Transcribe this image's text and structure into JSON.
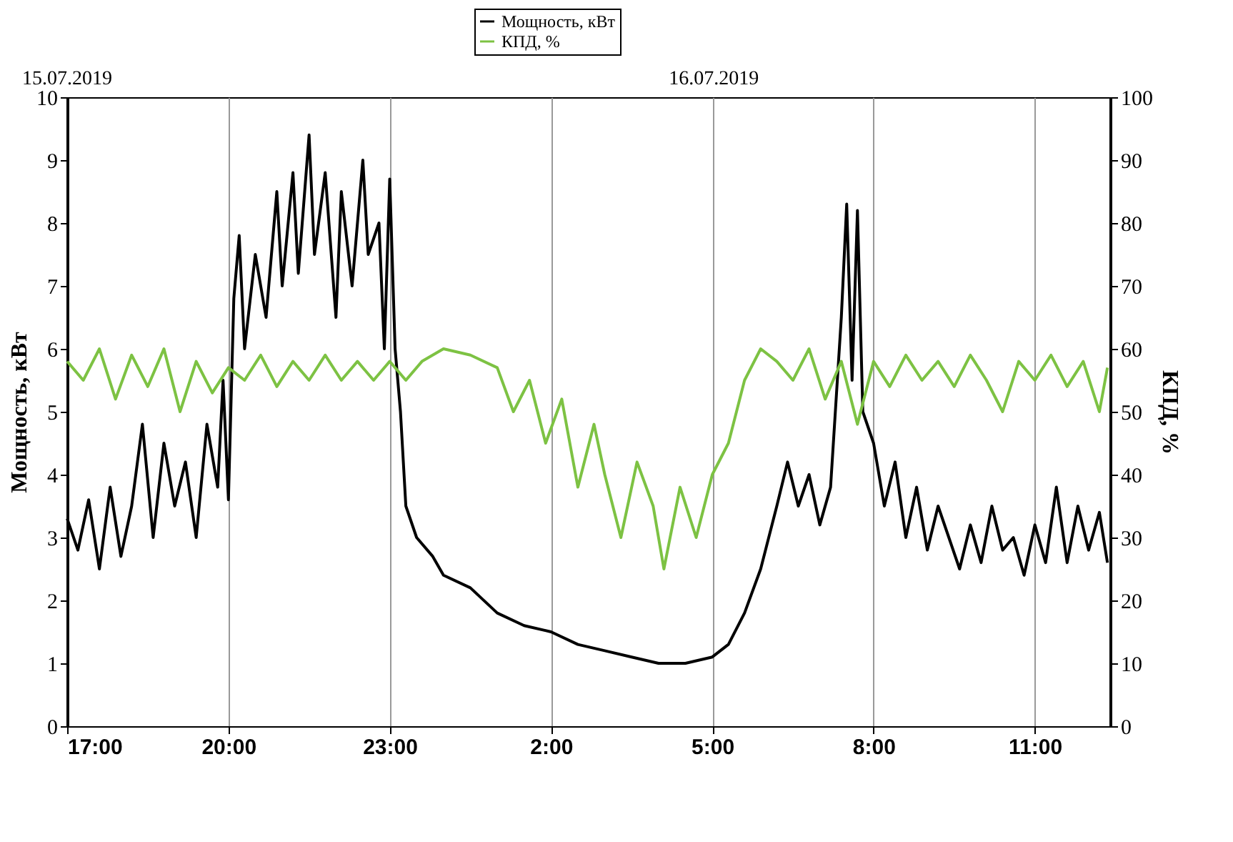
{
  "chart_data": {
    "type": "line",
    "ylabel": "Мощность, кВт",
    "y2label": "КПД, %",
    "xlim": [
      "2019-07-15T17:00",
      "2019-07-16T12:24"
    ],
    "xticks": [
      {
        "value": "2019-07-15T17:00",
        "label": "17:00"
      },
      {
        "value": "2019-07-15T20:00",
        "label": "20:00"
      },
      {
        "value": "2019-07-15T23:00",
        "label": "23:00"
      },
      {
        "value": "2019-07-16T02:00",
        "label": "2:00"
      },
      {
        "value": "2019-07-16T05:00",
        "label": "5:00"
      },
      {
        "value": "2019-07-16T08:00",
        "label": "8:00"
      },
      {
        "value": "2019-07-16T11:00",
        "label": "11:00"
      }
    ],
    "annotations": [
      "15.07.2019",
      "16.07.2019"
    ],
    "ylim": [
      0,
      10
    ],
    "yticks": [
      0,
      1,
      2,
      3,
      4,
      5,
      6,
      7,
      8,
      9,
      10
    ],
    "y2lim": [
      0,
      100
    ],
    "y2ticks": [
      0,
      10,
      20,
      30,
      40,
      50,
      60,
      70,
      80,
      90,
      100
    ],
    "grid": "x",
    "legend": "top",
    "marker": "none",
    "line_style": "solid",
    "series": [
      {
        "name": "Мощность, кВт",
        "color": "#000000",
        "x": [
          "2019-07-15T17:00",
          "2019-07-15T17:12",
          "2019-07-15T17:24",
          "2019-07-15T17:36",
          "2019-07-15T17:48",
          "2019-07-15T18:00",
          "2019-07-15T18:12",
          "2019-07-15T18:24",
          "2019-07-15T18:36",
          "2019-07-15T18:48",
          "2019-07-15T19:00",
          "2019-07-15T19:12",
          "2019-07-15T19:24",
          "2019-07-15T19:36",
          "2019-07-15T19:48",
          "2019-07-15T19:54",
          "2019-07-15T20:00",
          "2019-07-15T20:06",
          "2019-07-15T20:12",
          "2019-07-15T20:18",
          "2019-07-15T20:30",
          "2019-07-15T20:42",
          "2019-07-15T20:54",
          "2019-07-15T21:00",
          "2019-07-15T21:12",
          "2019-07-15T21:18",
          "2019-07-15T21:30",
          "2019-07-15T21:36",
          "2019-07-15T21:48",
          "2019-07-15T22:00",
          "2019-07-15T22:06",
          "2019-07-15T22:18",
          "2019-07-15T22:30",
          "2019-07-15T22:36",
          "2019-07-15T22:48",
          "2019-07-15T22:54",
          "2019-07-15T23:00",
          "2019-07-15T23:06",
          "2019-07-15T23:12",
          "2019-07-15T23:18",
          "2019-07-15T23:30",
          "2019-07-15T23:48",
          "2019-07-16T00:00",
          "2019-07-16T00:30",
          "2019-07-16T01:00",
          "2019-07-16T01:30",
          "2019-07-16T02:00",
          "2019-07-16T02:30",
          "2019-07-16T03:00",
          "2019-07-16T03:30",
          "2019-07-16T04:00",
          "2019-07-16T04:30",
          "2019-07-16T05:00",
          "2019-07-16T05:18",
          "2019-07-16T05:36",
          "2019-07-16T05:54",
          "2019-07-16T06:12",
          "2019-07-16T06:24",
          "2019-07-16T06:36",
          "2019-07-16T06:48",
          "2019-07-16T07:00",
          "2019-07-16T07:12",
          "2019-07-16T07:24",
          "2019-07-16T07:30",
          "2019-07-16T07:36",
          "2019-07-16T07:42",
          "2019-07-16T07:48",
          "2019-07-16T08:00",
          "2019-07-16T08:12",
          "2019-07-16T08:24",
          "2019-07-16T08:36",
          "2019-07-16T08:48",
          "2019-07-16T09:00",
          "2019-07-16T09:12",
          "2019-07-16T09:24",
          "2019-07-16T09:36",
          "2019-07-16T09:48",
          "2019-07-16T10:00",
          "2019-07-16T10:12",
          "2019-07-16T10:24",
          "2019-07-16T10:36",
          "2019-07-16T10:48",
          "2019-07-16T11:00",
          "2019-07-16T11:12",
          "2019-07-16T11:24",
          "2019-07-16T11:36",
          "2019-07-16T11:48",
          "2019-07-16T12:00",
          "2019-07-16T12:12",
          "2019-07-16T12:21"
        ],
        "values": [
          3.3,
          2.8,
          3.6,
          2.5,
          3.8,
          2.7,
          3.5,
          4.8,
          3.0,
          4.5,
          3.5,
          4.2,
          3.0,
          4.8,
          3.8,
          5.5,
          3.6,
          6.8,
          7.8,
          6.0,
          7.5,
          6.5,
          8.5,
          7.0,
          8.8,
          7.2,
          9.4,
          7.5,
          8.8,
          6.5,
          8.5,
          7.0,
          9.0,
          7.5,
          8.0,
          6.0,
          8.7,
          6.0,
          5.0,
          3.5,
          3.0,
          2.7,
          2.4,
          2.2,
          1.8,
          1.6,
          1.5,
          1.3,
          1.2,
          1.1,
          1.0,
          1.0,
          1.1,
          1.3,
          1.8,
          2.5,
          3.5,
          4.2,
          3.5,
          4.0,
          3.2,
          3.8,
          6.5,
          8.3,
          5.5,
          8.2,
          5.0,
          4.5,
          3.5,
          4.2,
          3.0,
          3.8,
          2.8,
          3.5,
          3.0,
          2.5,
          3.2,
          2.6,
          3.5,
          2.8,
          3.0,
          2.4,
          3.2,
          2.6,
          3.8,
          2.6,
          3.5,
          2.8,
          3.4,
          2.6
        ]
      },
      {
        "name": "КПД, %",
        "color": "#7dc243",
        "axis": "y2",
        "x": [
          "2019-07-15T17:00",
          "2019-07-15T17:18",
          "2019-07-15T17:36",
          "2019-07-15T17:54",
          "2019-07-15T18:12",
          "2019-07-15T18:30",
          "2019-07-15T18:48",
          "2019-07-15T19:06",
          "2019-07-15T19:24",
          "2019-07-15T19:42",
          "2019-07-15T20:00",
          "2019-07-15T20:18",
          "2019-07-15T20:36",
          "2019-07-15T20:54",
          "2019-07-15T21:12",
          "2019-07-15T21:30",
          "2019-07-15T21:48",
          "2019-07-15T22:06",
          "2019-07-15T22:24",
          "2019-07-15T22:42",
          "2019-07-15T23:00",
          "2019-07-15T23:18",
          "2019-07-15T23:36",
          "2019-07-16T00:00",
          "2019-07-16T00:30",
          "2019-07-16T01:00",
          "2019-07-16T01:18",
          "2019-07-16T01:36",
          "2019-07-16T01:54",
          "2019-07-16T02:12",
          "2019-07-16T02:30",
          "2019-07-16T02:48",
          "2019-07-16T03:00",
          "2019-07-16T03:18",
          "2019-07-16T03:36",
          "2019-07-16T03:54",
          "2019-07-16T04:06",
          "2019-07-16T04:24",
          "2019-07-16T04:42",
          "2019-07-16T05:00",
          "2019-07-16T05:18",
          "2019-07-16T05:36",
          "2019-07-16T05:54",
          "2019-07-16T06:12",
          "2019-07-16T06:30",
          "2019-07-16T06:48",
          "2019-07-16T07:06",
          "2019-07-16T07:24",
          "2019-07-16T07:42",
          "2019-07-16T08:00",
          "2019-07-16T08:18",
          "2019-07-16T08:36",
          "2019-07-16T08:54",
          "2019-07-16T09:12",
          "2019-07-16T09:30",
          "2019-07-16T09:48",
          "2019-07-16T10:06",
          "2019-07-16T10:24",
          "2019-07-16T10:42",
          "2019-07-16T11:00",
          "2019-07-16T11:18",
          "2019-07-16T11:36",
          "2019-07-16T11:54",
          "2019-07-16T12:12",
          "2019-07-16T12:21"
        ],
        "values": [
          58,
          55,
          60,
          52,
          59,
          54,
          60,
          50,
          58,
          53,
          57,
          55,
          59,
          54,
          58,
          55,
          59,
          55,
          58,
          55,
          58,
          55,
          58,
          60,
          59,
          57,
          50,
          55,
          45,
          52,
          38,
          48,
          40,
          30,
          42,
          35,
          25,
          38,
          30,
          40,
          45,
          55,
          60,
          58,
          55,
          60,
          52,
          58,
          48,
          58,
          54,
          59,
          55,
          58,
          54,
          59,
          55,
          50,
          58,
          55,
          59,
          54,
          58,
          50,
          57
        ]
      }
    ]
  }
}
